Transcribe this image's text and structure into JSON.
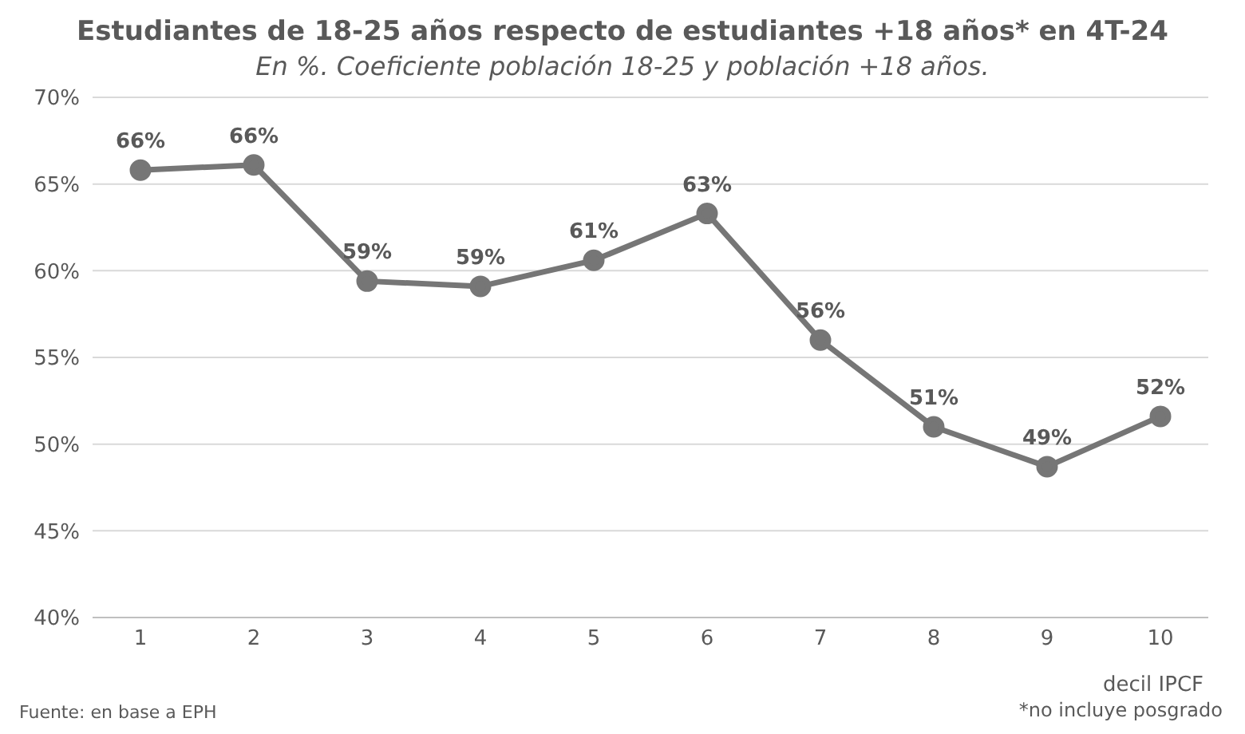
{
  "chart_data": {
    "type": "line",
    "title": "Estudiantes de 18-25 años respecto de estudiantes +18 años* en 4T-24",
    "subtitle": "En %. Coeficiente población 18-25 y población +18 años.",
    "xlabel": "decil IPCF",
    "categories": [
      "1",
      "2",
      "3",
      "4",
      "5",
      "6",
      "7",
      "8",
      "9",
      "10"
    ],
    "series": [
      {
        "color": "#767676",
        "values": [
          65.8,
          66.1,
          59.4,
          59.1,
          60.6,
          63.3,
          56.0,
          51.0,
          48.7,
          51.6
        ],
        "value_labels": [
          "66%",
          "66%",
          "59%",
          "59%",
          "61%",
          "63%",
          "56%",
          "51%",
          "49%",
          "52%"
        ]
      }
    ],
    "ylim": [
      40,
      70
    ],
    "yticks": [
      {
        "value": 40,
        "label": "40%"
      },
      {
        "value": 45,
        "label": "45%"
      },
      {
        "value": 50,
        "label": "50%"
      },
      {
        "value": 55,
        "label": "55%"
      },
      {
        "value": 60,
        "label": "60%"
      },
      {
        "value": 65,
        "label": "65%"
      },
      {
        "value": 70,
        "label": "70%"
      }
    ],
    "grid": "y",
    "marker": "circle",
    "line_style": "solid",
    "annotations": [
      "Fuente: en base a EPH",
      "*no incluye posgrado"
    ]
  }
}
